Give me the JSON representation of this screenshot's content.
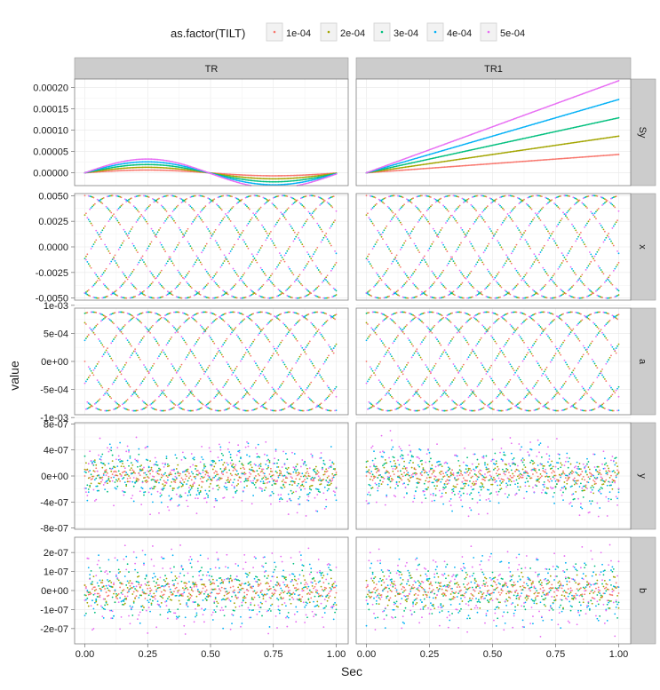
{
  "chart_data": {
    "type": "scatter",
    "facet_columns": [
      "TR",
      "TR1"
    ],
    "facet_rows": [
      "Sy",
      "x",
      "a",
      "y",
      "b"
    ],
    "legend": {
      "title": "as.factor(TILT)",
      "position": "top",
      "entries": [
        {
          "label": "1e-04",
          "color": "#F8766D"
        },
        {
          "label": "2e-04",
          "color": "#A3A500"
        },
        {
          "label": "3e-04",
          "color": "#00BF7D"
        },
        {
          "label": "4e-04",
          "color": "#00B0F6"
        },
        {
          "label": "5e-04",
          "color": "#E76BF3"
        }
      ]
    },
    "xlabel": "Sec",
    "ylabel": "value",
    "xlim": [
      0,
      1
    ],
    "x_ticks": [
      "0.00",
      "0.25",
      "0.50",
      "0.75",
      "1.00"
    ],
    "grid": true,
    "tilts": [
      0.0001,
      0.0002,
      0.0003,
      0.0004,
      0.0005
    ],
    "rows": [
      {
        "name": "Sy",
        "ylim": [
          -3e-05,
          0.00022
        ],
        "ticks": [
          0,
          5e-05,
          0.0001,
          0.00015,
          0.0002
        ],
        "tick_labels": [
          "0.00000",
          "0.00005",
          "0.00010",
          "0.00015",
          "0.00020"
        ],
        "TR": {
          "shape": "sine",
          "peak_at_tilt_5e-04": 3.3e-05,
          "end_value_at_tilt_5e-04": -3e-06
        },
        "TR1": {
          "shape": "linear",
          "end_values": [
            4.3e-05,
            8.6e-05,
            0.000129,
            0.000172,
            0.000216
          ]
        }
      },
      {
        "name": "x",
        "ylim": [
          -0.0052,
          0.0052
        ],
        "ticks": [
          -0.005,
          -0.0025,
          0,
          0.0025,
          0.005
        ],
        "tick_labels": [
          "-0.0050",
          "-0.0025",
          "0.0000",
          "0.0025",
          "0.0050"
        ],
        "amplitude": 0.005
      },
      {
        "name": "a",
        "ylim": [
          -0.00095,
          0.00095
        ],
        "ticks": [
          -0.001,
          -0.0005,
          0,
          0.0005,
          0.001
        ],
        "tick_labels": [
          "-1e-03",
          "-5e-04",
          "0e+00",
          "5e-04",
          "1e-03"
        ],
        "amplitude": 0.00088
      },
      {
        "name": "y",
        "ylim": [
          -8.2e-07,
          8.2e-07
        ],
        "ticks": [
          -8e-07,
          -4e-07,
          0,
          4e-07,
          8e-07
        ],
        "tick_labels": [
          "-8e-07",
          "-4e-07",
          "0e+00",
          "4e-07",
          "8e-07"
        ],
        "spread_at_tilt_5e-04": 6e-07
      },
      {
        "name": "b",
        "ylim": [
          -2.8e-07,
          2.8e-07
        ],
        "ticks": [
          -2e-07,
          -1e-07,
          0,
          1e-07,
          2e-07
        ],
        "tick_labels": [
          "-2e-07",
          "-1e-07",
          "0e+00",
          "1e-07",
          "2e-07"
        ],
        "spread_at_tilt_5e-04": 2.5e-07
      }
    ]
  }
}
